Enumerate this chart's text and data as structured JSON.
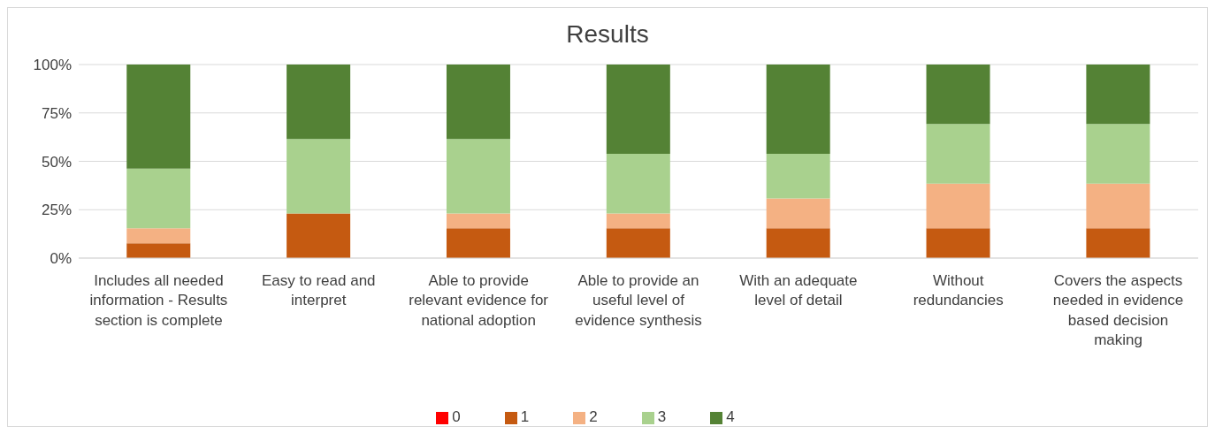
{
  "chart_data": {
    "type": "bar",
    "stacked": true,
    "title": "Results",
    "categories": [
      "Includes all needed information - Results section is complete",
      "Easy to read and interpret",
      "Able to provide relevant evidence for national adoption",
      "Able to provide an useful level of evidence synthesis",
      "With an adequate level of detail",
      "Without redundancies",
      "Covers the aspects needed in evidence based decision making"
    ],
    "series": [
      {
        "name": "0",
        "color": "#ff0000",
        "values": [
          0,
          0,
          0,
          0,
          0,
          0,
          0
        ]
      },
      {
        "name": "1",
        "color": "#c55a11",
        "values": [
          7.7,
          23.1,
          15.4,
          15.4,
          15.4,
          15.4,
          15.4
        ]
      },
      {
        "name": "2",
        "color": "#f4b183",
        "values": [
          7.7,
          0,
          7.7,
          7.7,
          15.4,
          23.1,
          23.1
        ]
      },
      {
        "name": "3",
        "color": "#a9d18e",
        "values": [
          30.8,
          38.4,
          38.4,
          30.8,
          23.1,
          30.8,
          30.8
        ]
      },
      {
        "name": "4",
        "color": "#548235",
        "values": [
          53.8,
          38.5,
          38.5,
          46.1,
          46.1,
          30.7,
          30.7
        ]
      }
    ],
    "ylim": [
      0,
      100
    ],
    "yticks": [
      {
        "value": 0,
        "label": "0%"
      },
      {
        "value": 25,
        "label": "25%"
      },
      {
        "value": 50,
        "label": "50%"
      },
      {
        "value": 75,
        "label": "75%"
      },
      {
        "value": 100,
        "label": "100%"
      }
    ],
    "grid": "y",
    "legend": "bottom"
  }
}
